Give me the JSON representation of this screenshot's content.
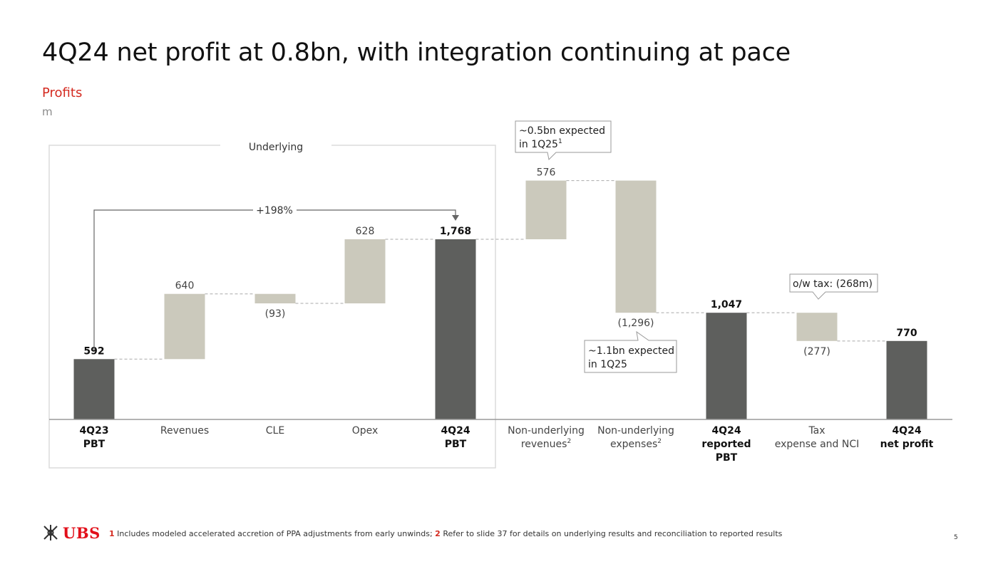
{
  "title": "4Q24 net profit at 0.8bn, with integration continuing at pace",
  "subtitle": "Profits",
  "unit": "m",
  "chart_data": {
    "type": "bar",
    "subtype": "waterfall",
    "ylim": [
      0,
      2000
    ],
    "bars": [
      {
        "lines": [
          "4Q23",
          "PBT"
        ],
        "kind": "total",
        "start": 0,
        "end": 592,
        "label": "592",
        "bold": true
      },
      {
        "lines": [
          "Revenues"
        ],
        "kind": "delta",
        "start": 592,
        "end": 1232,
        "label": "640",
        "bold": false
      },
      {
        "lines": [
          "CLE"
        ],
        "kind": "delta",
        "start": 1232,
        "end": 1139,
        "label": "(93)",
        "bold": false
      },
      {
        "lines": [
          "Opex"
        ],
        "kind": "delta",
        "start": 1139,
        "end": 1768,
        "label": "628",
        "bold": false
      },
      {
        "lines": [
          "4Q24",
          "PBT"
        ],
        "kind": "total",
        "start": 0,
        "end": 1768,
        "label": "1,768",
        "bold": true
      },
      {
        "lines": [
          "Non-underlying",
          "revenues"
        ],
        "sup": "2",
        "kind": "delta",
        "start": 1768,
        "end": 2344,
        "label": "576",
        "bold": false
      },
      {
        "lines": [
          "Non-underlying",
          "expenses"
        ],
        "sup": "2",
        "kind": "delta",
        "start": 2344,
        "end": 1047,
        "label": "(1,296)",
        "bold": false
      },
      {
        "lines": [
          "4Q24",
          "reported",
          "PBT"
        ],
        "kind": "total",
        "start": 0,
        "end": 1047,
        "label": "1,047",
        "bold": true
      },
      {
        "lines": [
          "Tax",
          "expense and NCI"
        ],
        "kind": "delta",
        "start": 1047,
        "end": 770,
        "label": "(277)",
        "bold": false
      },
      {
        "lines": [
          "4Q24",
          "net profit"
        ],
        "kind": "total",
        "start": 0,
        "end": 770,
        "label": "770",
        "bold": true
      }
    ],
    "group_label": "Underlying",
    "growth_label": "+198%",
    "annotations": {
      "nonunderlying_revenues": {
        "line1": "~0.5bn expected",
        "line2": "in 1Q25",
        "sup": "1"
      },
      "nonunderlying_expenses": {
        "line1": "~1.1bn expected",
        "line2": "in 1Q25"
      },
      "tax": {
        "line1": "o/w tax: (268m)"
      }
    },
    "colors": {
      "total": "#5e5f5d",
      "delta": "#cbc9bc",
      "connector": "#a9a9a9",
      "axis": "#9a9a9a"
    }
  },
  "footer": {
    "logo_text": "UBS",
    "fn1_num": "1",
    "fn1_text": " Includes modeled accelerated accretion of PPA adjustments from early unwinds; ",
    "fn2_num": "2",
    "fn2_text": " Refer to slide 37 for details on underlying results and reconciliation to reported results",
    "page_number": "5"
  }
}
